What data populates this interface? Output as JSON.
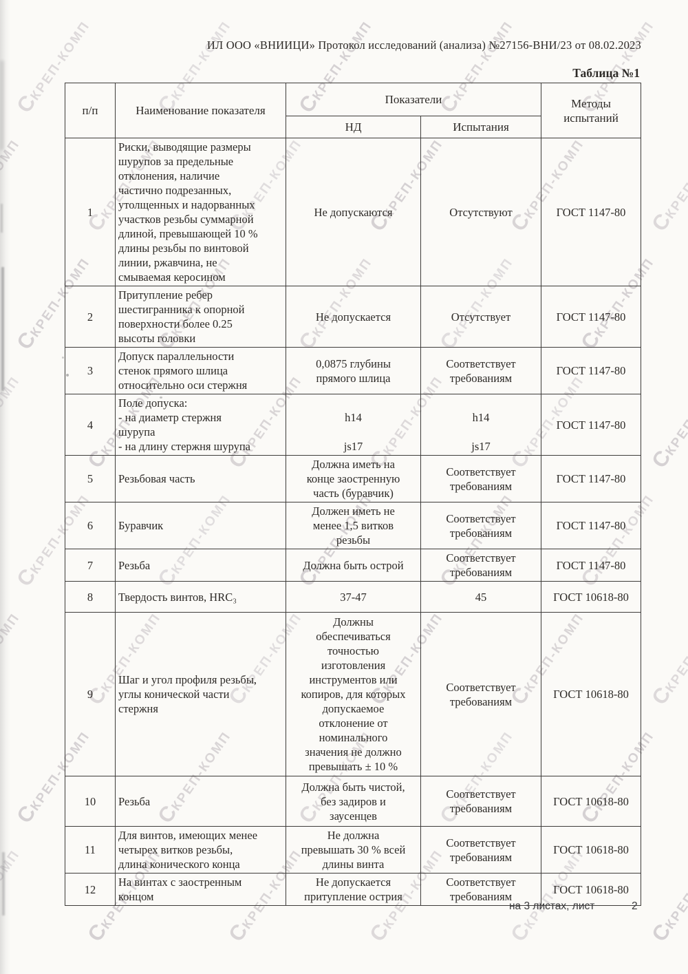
{
  "page": {
    "header_line": "ИЛ ООО «ВНИИЦИ» Протокол исследований (анализа) №27156-ВНИ/23 от 08.02.2023",
    "table_caption": "Таблица №1",
    "footer": {
      "sheets_label": "на 3 листах, лист",
      "page_number": "2"
    }
  },
  "watermark": {
    "logo_glyph": "С",
    "text": "КРЕП-КОМП",
    "color": "#bdb7bc"
  },
  "table": {
    "headers": {
      "num": "п/п",
      "name": "Наименование показателя",
      "indicators": "Показатели",
      "nd": "НД",
      "test": "Испытания",
      "methods": "Методы\nиспытаний"
    },
    "rows": [
      {
        "num": "1",
        "name": "Риски, выводящие размеры\nшурупов за предельные\nотклонения, наличие\nчастично подрезанных,\nутолщенных и надорванных\nучастков резьбы суммарной\nдлиной, превышающей 10 %\nдлины резьбы по винтовой\nлинии, ржавчина, не\nсмываемая керосином",
        "nd": "Не допускаются",
        "test": "Отсутствуют",
        "method": "ГОСТ 1147-80"
      },
      {
        "num": "2",
        "name": "Притупление ребер\nшестигранника к опорной\nповерхности более 0.25\nвысоты головки",
        "nd": "Не допускается",
        "test": "Отсутствует",
        "method": "ГОСТ 1147-80"
      },
      {
        "num": "3",
        "name": "Допуск параллельности\nстенок прямого шлица\nотносительно оси стержня",
        "nd": "0,0875 глубины\nпрямого шлица",
        "test": "Соответствует\nтребованиям",
        "method": "ГОСТ 1147-80"
      },
      {
        "num": "4",
        "name": "Поле допуска:\n- на диаметр стержня\nшурупа\n- на длину стержня шурупа",
        "nd": "\nh14\n\njs17",
        "test": "\nh14\n\njs17",
        "method": "ГОСТ 1147-80"
      },
      {
        "num": "5",
        "name": "Резьбовая часть",
        "nd": "Должна иметь на\nконце заостренную\nчасть (буравчик)",
        "test": "Соответствует\nтребованиям",
        "method": "ГОСТ 1147-80"
      },
      {
        "num": "6",
        "name": "Буравчик",
        "nd": "Должен иметь не\nменее 1,5 витков\nрезьбы",
        "test": "Соответствует\nтребованиям",
        "method": "ГОСТ 1147-80"
      },
      {
        "num": "7",
        "name": "Резьба",
        "nd": "Должна быть острой",
        "test": "Соответствует\nтребованиям",
        "method": "ГОСТ 1147-80"
      },
      {
        "num": "8",
        "name": "Твердость винтов, HRC₃",
        "nd": "37-47",
        "test": "45",
        "method": "ГОСТ 10618-80"
      },
      {
        "num": "9",
        "name": "Шаг и угол профиля резьбы,\nуглы конической части\nстержня",
        "nd": "Должны\nобеспечиваться\nточностью\nизготовления\nинструментов или\nкопиров, для которых\nдопускаемое\nотклонение от\nноминального\nзначения не должно\nпревышать ± 10 %",
        "test": "Соответствует\nтребованиям",
        "method": "ГОСТ 10618-80"
      },
      {
        "num": "10",
        "name": "Резьба",
        "nd": "Должна быть чистой,\nбез задиров и\nзаусенцев",
        "test": "Соответствует\nтребованиям",
        "method": "ГОСТ 10618-80"
      },
      {
        "num": "11",
        "name": "Для винтов, имеющих менее\nчетырех витков резьбы,\nдлина конического конца",
        "nd": "Не должна\nпревышать 30 % всей\nдлины винта",
        "test": "Соответствует\nтребованиям",
        "method": "ГОСТ 10618-80"
      },
      {
        "num": "12",
        "name": "На винтах с заостренным\nконцом",
        "nd": "Не допускается\nпритупление острия",
        "test": "Соответствует\nтребованиям",
        "method": "ГОСТ 10618-80"
      }
    ]
  }
}
